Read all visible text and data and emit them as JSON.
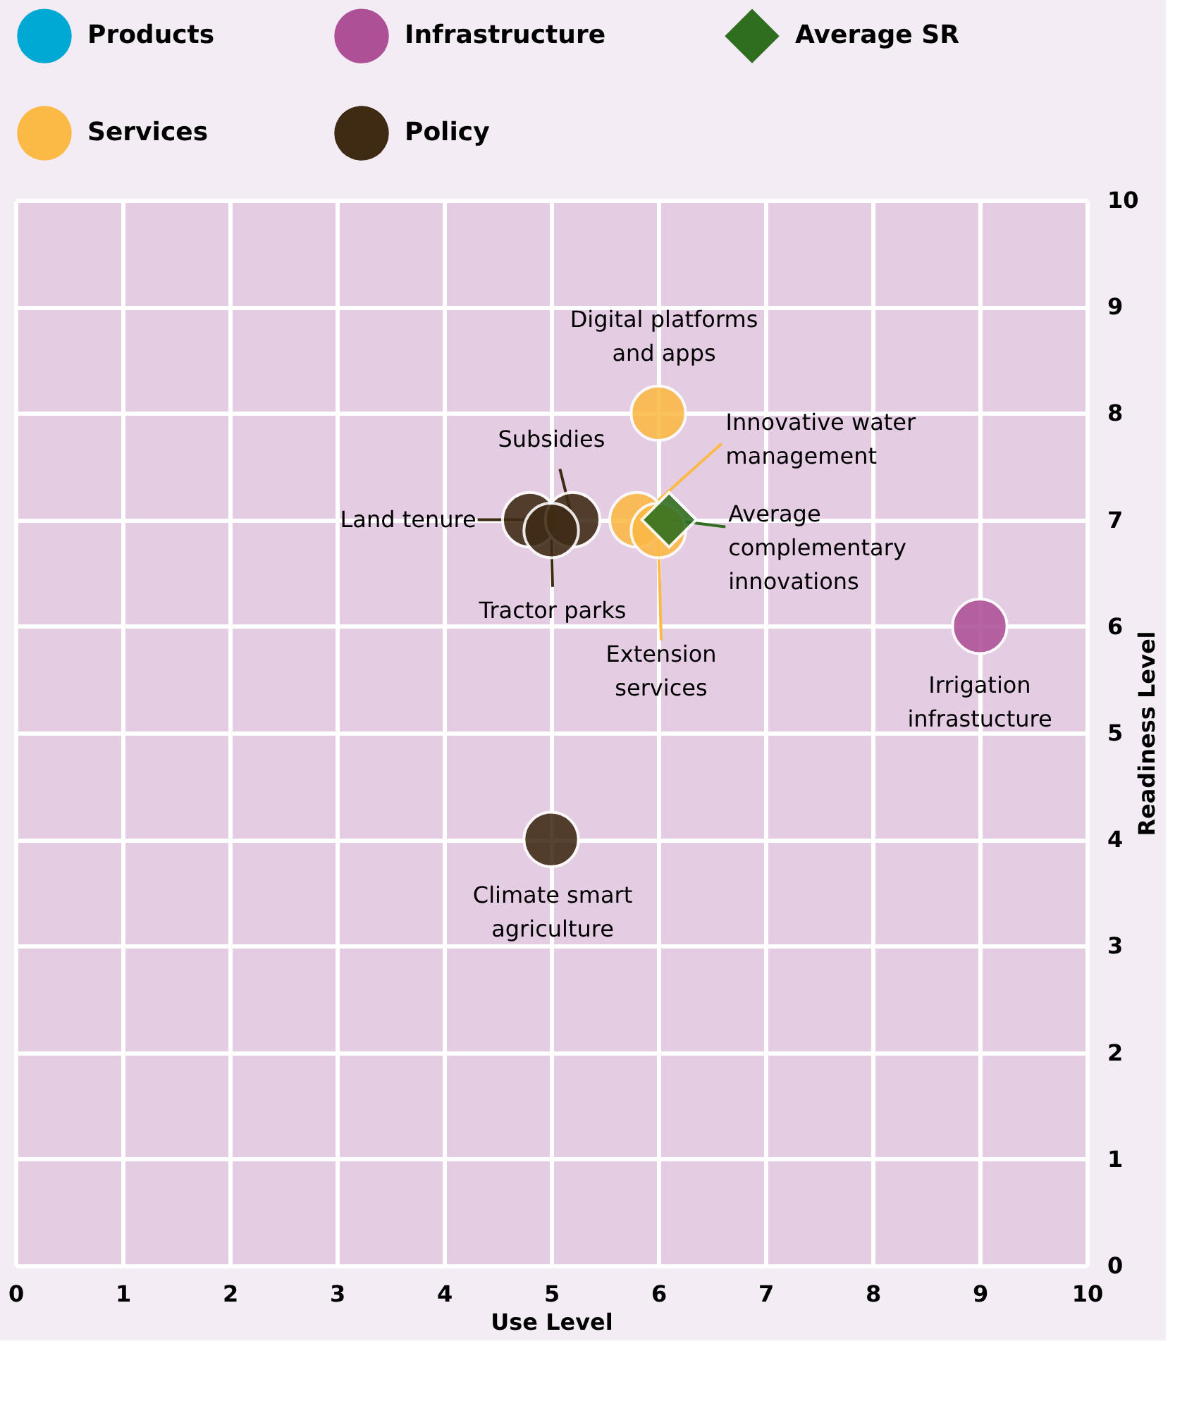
{
  "chart_data": {
    "type": "scatter",
    "xlabel": "Use Level",
    "ylabel": "Readiness Level",
    "xlim": [
      0,
      10
    ],
    "ylim": [
      0,
      10
    ],
    "xticks": [
      0,
      1,
      2,
      3,
      4,
      5,
      6,
      7,
      8,
      9,
      10
    ],
    "yticks": [
      0,
      1,
      2,
      3,
      4,
      5,
      6,
      7,
      8,
      9,
      10
    ],
    "grid": true,
    "legend": "top left",
    "marker": "circle",
    "series": [
      {
        "name": "Products",
        "color": "#00a9d4"
      },
      {
        "name": "Infrastructure",
        "color": "#ae5096",
        "x": [
          9
        ],
        "values": [
          6
        ]
      },
      {
        "name": "Average SR",
        "color": "#2e6e1e",
        "marker": "diamond",
        "x": [
          6.1
        ],
        "values": [
          7
        ]
      },
      {
        "name": "Services",
        "color": "#fbb945",
        "x": [
          6,
          5.8,
          6
        ],
        "values": [
          8,
          7,
          6.9
        ]
      },
      {
        "name": "Policy",
        "color": "#3f2a14",
        "x": [
          4.8,
          5.2,
          5,
          5
        ],
        "values": [
          7,
          7,
          6.9,
          4
        ]
      }
    ],
    "annotations": [
      {
        "text": "Digital platforms and apps",
        "x": 6,
        "y": 8
      },
      {
        "text": "Innovative water management",
        "x": 5.8,
        "y": 7
      },
      {
        "text": "Extension services",
        "x": 6,
        "y": 6.9
      },
      {
        "text": "Average complementary innovations",
        "x": 6.1,
        "y": 7
      },
      {
        "text": "Land tenure",
        "x": 4.8,
        "y": 7
      },
      {
        "text": "Subsidies",
        "x": 5.2,
        "y": 7
      },
      {
        "text": "Tractor parks",
        "x": 5,
        "y": 6.9
      },
      {
        "text": "Climate smart agriculture",
        "x": 5,
        "y": 4
      },
      {
        "text": "Irrigation infrastucture",
        "x": 9,
        "y": 6
      }
    ]
  }
}
